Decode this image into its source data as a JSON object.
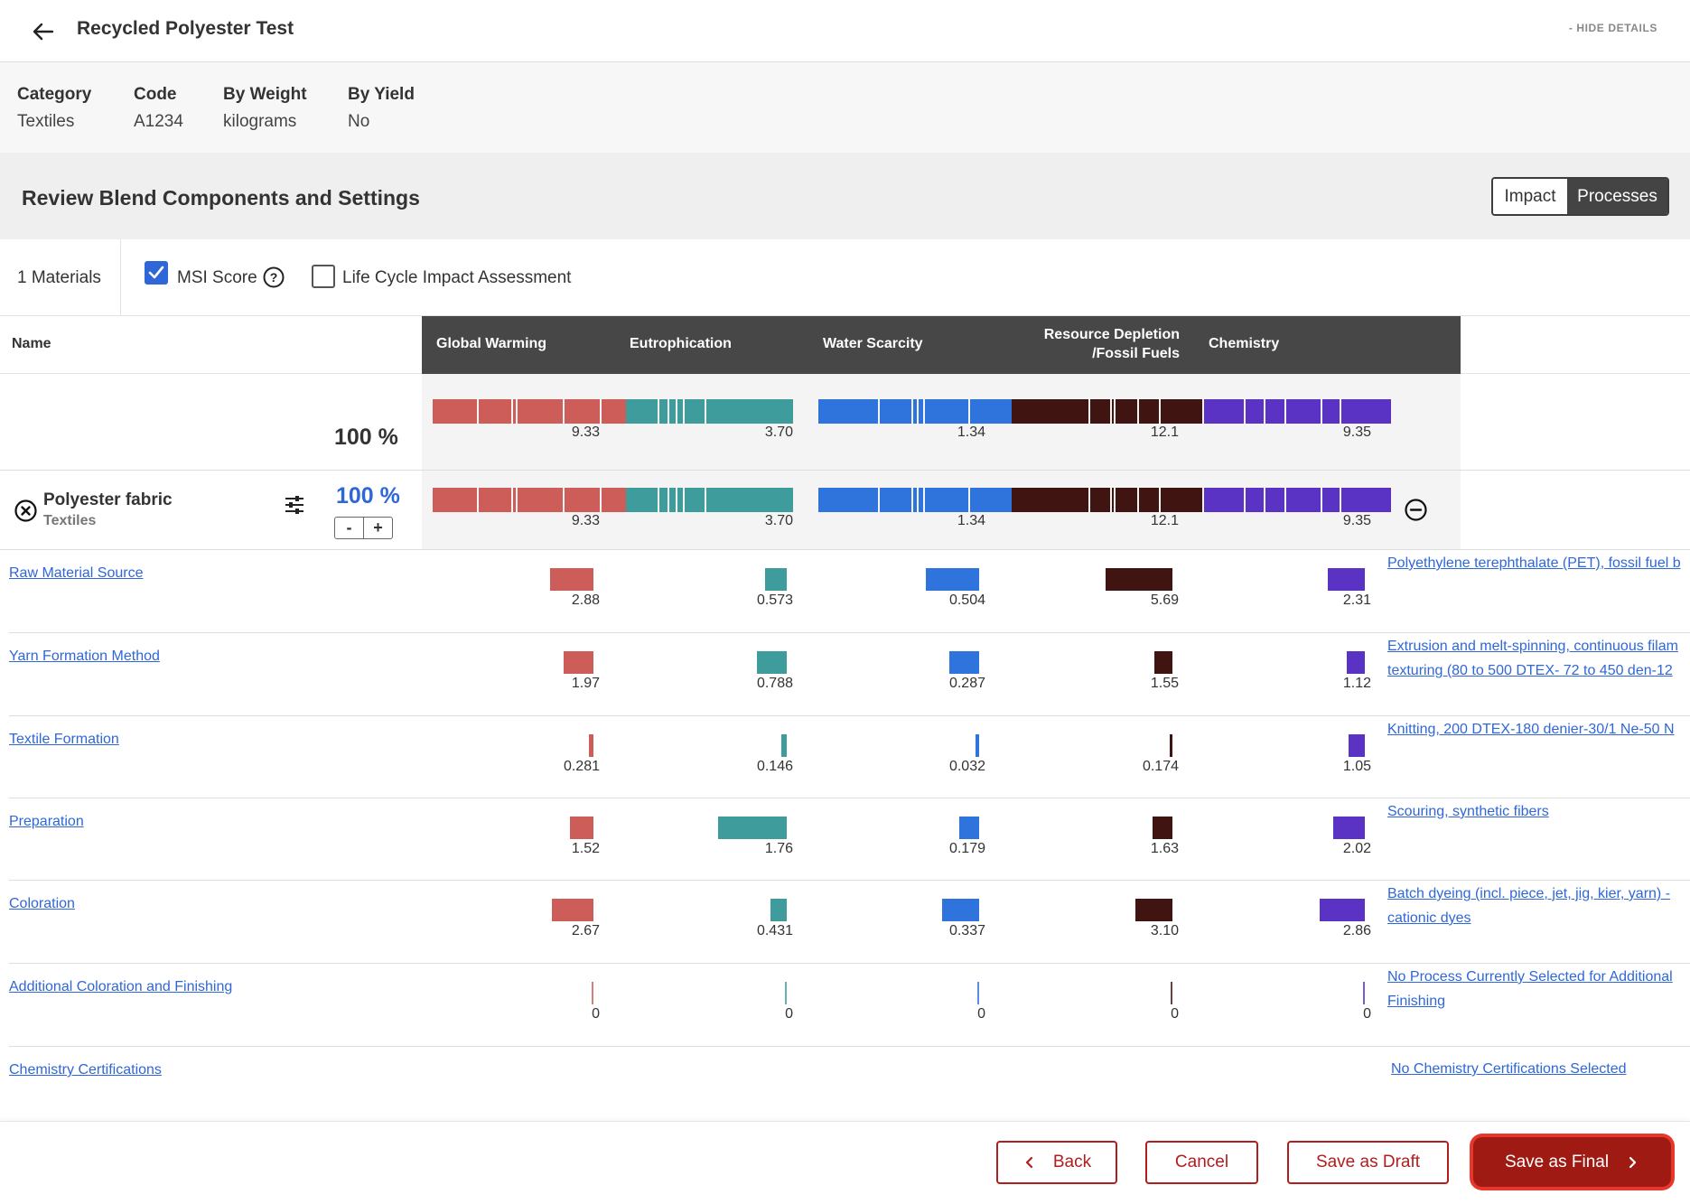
{
  "header": {
    "title": "Recycled Polyester Test",
    "hide_details": "- HIDE DETAILS"
  },
  "info": [
    {
      "label": "Category",
      "value": "Textiles"
    },
    {
      "label": "Code",
      "value": "A1234"
    },
    {
      "label": "By Weight",
      "value": "kilograms"
    },
    {
      "label": "By Yield",
      "value": "No"
    }
  ],
  "review": {
    "title": "Review Blend Components and Settings",
    "toggle_impact": "Impact",
    "toggle_processes": "Processes"
  },
  "filters": {
    "materials_count": "1 Materials",
    "msi_score": "MSI Score",
    "msi_checked": true,
    "lcia": "Life Cycle Impact Assessment",
    "lcia_checked": false
  },
  "table": {
    "name_header": "Name",
    "metrics": [
      "Global Warming",
      "Eutrophication",
      "Water Scarcity",
      "Resource Depletion /Fossil Fuels",
      "Chemistry"
    ],
    "metric_colors": [
      "#cd5d58",
      "#3f9c9c",
      "#2f73dd",
      "#3f1411",
      "#5a33c4"
    ],
    "total_percent": "100 %",
    "totals": [
      "9.33",
      "3.70",
      "1.34",
      "12.1",
      "9.35"
    ],
    "stack_fraction": [
      [
        0.275,
        0.205,
        0.03,
        0.28,
        0.22,
        0.285,
        0.01
      ],
      [
        0.2,
        0.06,
        0.05,
        0.04,
        0.13,
        0.53,
        0.0
      ],
      [
        0.37,
        0.2,
        0.03,
        0.04,
        0.27,
        0.29,
        0.0
      ],
      [
        0.47,
        0.13,
        0.02,
        0.14,
        0.13,
        0.26,
        0.0
      ],
      [
        0.25,
        0.12,
        0.12,
        0.22,
        0.11,
        0.31,
        0.0
      ]
    ]
  },
  "material": {
    "name": "Polyester fabric",
    "category": "Textiles",
    "percent": "100 %",
    "stepper_minus": "-",
    "stepper_plus": "+",
    "totals": [
      "9.33",
      "3.70",
      "1.34",
      "12.1",
      "9.35"
    ]
  },
  "processes": [
    {
      "name": "Raw Material Source",
      "values": [
        "2.88",
        "0.573",
        "0.504",
        "5.69",
        "2.31"
      ],
      "bar_fraction": [
        0.26,
        0.13,
        0.32,
        0.4,
        0.22
      ],
      "selection": [
        "Polyethylene terephthalate (PET), fossil fuel b"
      ]
    },
    {
      "name": "Yarn Formation Method",
      "values": [
        "1.97",
        "0.788",
        "0.287",
        "1.55",
        "1.12"
      ],
      "bar_fraction": [
        0.18,
        0.18,
        0.18,
        0.11,
        0.11
      ],
      "selection": [
        "Extrusion and melt-spinning, continuous filam",
        "texturing (80 to 500 DTEX- 72 to 450 den-12"
      ]
    },
    {
      "name": "Textile Formation",
      "values": [
        "0.281",
        "0.146",
        "0.032",
        "0.174",
        "1.05"
      ],
      "bar_fraction": [
        0.025,
        0.035,
        0.02,
        0.012,
        0.1
      ],
      "selection": [
        "Knitting, 200 DTEX-180 denier-30/1 Ne-50 N"
      ]
    },
    {
      "name": "Preparation",
      "values": [
        "1.52",
        "1.76",
        "0.179",
        "1.63",
        "2.02"
      ],
      "bar_fraction": [
        0.14,
        0.41,
        0.12,
        0.12,
        0.19
      ],
      "selection": [
        "Scouring, synthetic fibers"
      ]
    },
    {
      "name": "Coloration",
      "values": [
        "2.67",
        "0.431",
        "0.337",
        "3.10",
        "2.86"
      ],
      "bar_fraction": [
        0.25,
        0.1,
        0.22,
        0.22,
        0.27
      ],
      "selection": [
        "Batch dyeing (incl. piece, jet, jig, kier, yarn) -",
        "cationic dyes"
      ]
    },
    {
      "name": "Additional Coloration and Finishing",
      "values": [
        "0",
        "0",
        "0",
        "0",
        "0"
      ],
      "bar_fraction": [
        0,
        0,
        0,
        0,
        0
      ],
      "selection": [
        "No Process Currently Selected for Additional",
        "Finishing"
      ]
    },
    {
      "name": "Chemistry Certifications",
      "values": [],
      "bar_fraction": [],
      "selection": [
        "No Chemistry Certifications Selected"
      ]
    }
  ],
  "footer": {
    "back": "Back",
    "cancel": "Cancel",
    "save_draft": "Save as Draft",
    "save_final": "Save as Final"
  }
}
